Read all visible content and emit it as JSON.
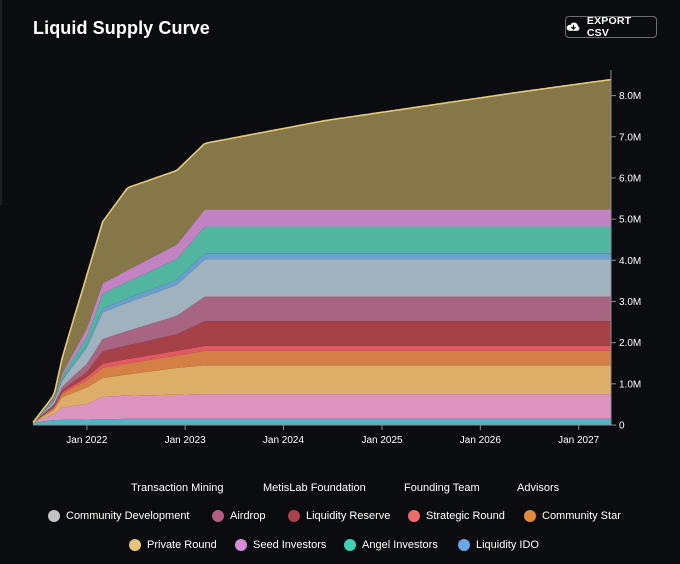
{
  "header": {
    "title": "Liquid Supply Curve",
    "export_label": "EXPORT CSV",
    "export_icon": "cloud-download-icon"
  },
  "legend_text_only": [
    "Transaction Mining",
    "MetisLab Foundation",
    "Founding Team",
    "Advisors"
  ],
  "legend_row2": [
    {
      "label": "Community Development",
      "color": "#c4c4c4"
    },
    {
      "label": "Airdrop",
      "color": "#b45f82"
    },
    {
      "label": "Liquidity Reserve",
      "color": "#a9424a"
    },
    {
      "label": "Strategic Round",
      "color": "#ef6b6b"
    },
    {
      "label": "Community Star",
      "color": "#e08a3c"
    }
  ],
  "legend_row3": [
    {
      "label": "Private Round",
      "color": "#e6c47a"
    },
    {
      "label": "Seed Investors",
      "color": "#d98ad8"
    },
    {
      "label": "Angel Investors",
      "color": "#3fd1b3"
    },
    {
      "label": "Liquidity IDO",
      "color": "#6aa7e8"
    }
  ],
  "chart_data": {
    "type": "area",
    "stacked": true,
    "x_ticks": [
      "Jan 2022",
      "Jan 2023",
      "Jan 2024",
      "Jan 2025",
      "Jan 2026",
      "Jan 2027"
    ],
    "y_ticks": [
      "0",
      "1.0M",
      "2.0M",
      "3.0M",
      "4.0M",
      "5.0M",
      "6.0M",
      "7.0M",
      "8.0M"
    ],
    "ylim": [
      0,
      8500000
    ],
    "x_range": [
      "2021-06-15",
      "2027-05-01"
    ],
    "grid": false,
    "legend_position": "bottom",
    "series": [
      {
        "name": "Liquidity IDO",
        "color": "#56c6d8",
        "fill_opacity": 0.9,
        "points": [
          [
            "2021-06-15",
            60000
          ],
          [
            "2021-09-01",
            120000
          ],
          [
            "2022-06-01",
            150000
          ],
          [
            "2027-05-01",
            150000
          ]
        ]
      },
      {
        "name": "Seed Investors",
        "color": "#e89bc9",
        "fill_opacity": 0.95,
        "points": [
          [
            "2021-06-15",
            0
          ],
          [
            "2021-09-01",
            150000
          ],
          [
            "2021-10-01",
            300000
          ],
          [
            "2022-01-01",
            380000
          ],
          [
            "2022-03-01",
            550000
          ],
          [
            "2023-03-15",
            600000
          ],
          [
            "2027-05-01",
            600000
          ]
        ]
      },
      {
        "name": "Private Round",
        "color": "#e9b76e",
        "fill_opacity": 0.95,
        "points": [
          [
            "2021-06-15",
            0
          ],
          [
            "2021-09-01",
            100000
          ],
          [
            "2021-10-01",
            250000
          ],
          [
            "2022-01-01",
            400000
          ],
          [
            "2022-03-01",
            450000
          ],
          [
            "2022-12-01",
            650000
          ],
          [
            "2023-03-15",
            700000
          ],
          [
            "2027-05-01",
            700000
          ]
        ]
      },
      {
        "name": "Community Star",
        "color": "#e0864a",
        "fill_opacity": 0.95,
        "points": [
          [
            "2021-06-15",
            0
          ],
          [
            "2021-09-01",
            50000
          ],
          [
            "2021-11-01",
            120000
          ],
          [
            "2022-01-01",
            170000
          ],
          [
            "2022-03-01",
            250000
          ],
          [
            "2022-12-01",
            300000
          ],
          [
            "2023-03-15",
            350000
          ],
          [
            "2027-05-01",
            350000
          ]
        ]
      },
      {
        "name": "Strategic Round",
        "color": "#ef5e68",
        "fill_opacity": 0.95,
        "points": [
          [
            "2021-06-15",
            0
          ],
          [
            "2021-09-01",
            20000
          ],
          [
            "2022-01-01",
            80000
          ],
          [
            "2022-03-01",
            100000
          ],
          [
            "2023-03-15",
            120000
          ],
          [
            "2027-05-01",
            120000
          ]
        ]
      },
      {
        "name": "Liquidity Reserve",
        "color": "#b0454c",
        "fill_opacity": 0.95,
        "points": [
          [
            "2021-06-15",
            0
          ],
          [
            "2021-09-01",
            30000
          ],
          [
            "2022-01-01",
            120000
          ],
          [
            "2022-03-01",
            300000
          ],
          [
            "2022-12-01",
            400000
          ],
          [
            "2023-03-15",
            600000
          ],
          [
            "2027-05-01",
            600000
          ]
        ]
      },
      {
        "name": "Airdrop",
        "color": "#b06a88",
        "fill_opacity": 0.95,
        "points": [
          [
            "2021-06-15",
            0
          ],
          [
            "2021-09-01",
            40000
          ],
          [
            "2022-01-01",
            200000
          ],
          [
            "2022-03-01",
            300000
          ],
          [
            "2022-12-01",
            450000
          ],
          [
            "2023-03-15",
            600000
          ],
          [
            "2027-05-01",
            600000
          ]
        ]
      },
      {
        "name": "Community Development",
        "color": "#a9bcc7",
        "fill_opacity": 0.95,
        "points": [
          [
            "2021-06-15",
            0
          ],
          [
            "2021-09-01",
            60000
          ],
          [
            "2022-01-01",
            400000
          ],
          [
            "2022-03-01",
            650000
          ],
          [
            "2022-12-01",
            750000
          ],
          [
            "2023-03-15",
            900000
          ],
          [
            "2027-05-01",
            900000
          ]
        ]
      },
      {
        "name": "Liquidity IDO",
        "color": "#6fa8d8",
        "fill_opacity": 0.95,
        "points": [
          [
            "2021-06-15",
            0
          ],
          [
            "2021-09-01",
            20000
          ],
          [
            "2022-01-01",
            60000
          ],
          [
            "2022-03-01",
            100000
          ],
          [
            "2022-12-01",
            130000
          ],
          [
            "2023-03-15",
            150000
          ],
          [
            "2027-05-01",
            150000
          ]
        ]
      },
      {
        "name": "Angel Investors",
        "color": "#59c9b0",
        "fill_opacity": 0.9,
        "points": [
          [
            "2021-06-15",
            0
          ],
          [
            "2021-09-01",
            30000
          ],
          [
            "2022-01-01",
            200000
          ],
          [
            "2022-03-01",
            350000
          ],
          [
            "2022-12-01",
            500000
          ],
          [
            "2023-03-15",
            650000
          ],
          [
            "2027-05-01",
            650000
          ]
        ]
      },
      {
        "name": "Seed Investors",
        "color": "#d590d6",
        "fill_opacity": 0.9,
        "points": [
          [
            "2021-06-15",
            0
          ],
          [
            "2021-09-01",
            30000
          ],
          [
            "2022-01-01",
            200000
          ],
          [
            "2022-03-01",
            250000
          ],
          [
            "2022-12-01",
            350000
          ],
          [
            "2023-03-15",
            420000
          ],
          [
            "2027-05-01",
            420000
          ]
        ]
      },
      {
        "name": "Private Round",
        "color": "#8c7d4c",
        "fill_opacity": 0.95,
        "stroke": "#e7c97a",
        "points": [
          [
            "2021-06-15",
            0
          ],
          [
            "2021-09-01",
            80000
          ],
          [
            "2022-01-01",
            1300000
          ],
          [
            "2022-03-01",
            1500000
          ],
          [
            "2022-06-01",
            2000000
          ],
          [
            "2022-09-01",
            1900000
          ],
          [
            "2022-12-01",
            1800000
          ],
          [
            "2023-03-15",
            1600000
          ],
          [
            "2024-06-01",
            2150000
          ],
          [
            "2025-06-01",
            2500000
          ],
          [
            "2026-06-01",
            2850000
          ],
          [
            "2027-05-01",
            3150000
          ]
        ]
      }
    ]
  }
}
